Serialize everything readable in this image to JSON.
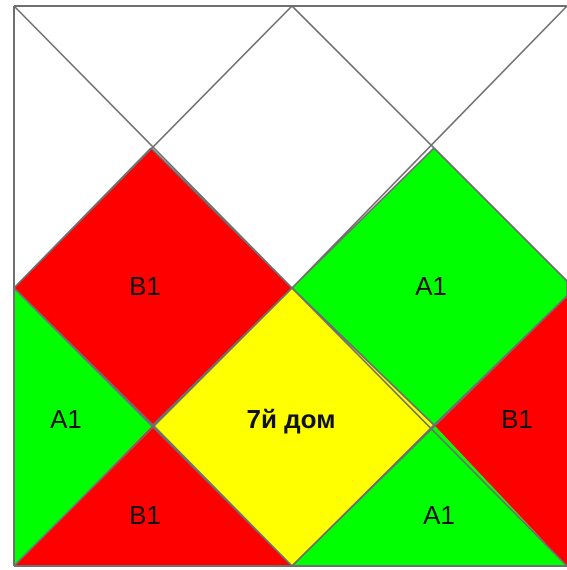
{
  "diagram": {
    "colors": {
      "red": "#ff0000",
      "green": "#00ff00",
      "yellow": "#ffff00",
      "white": "#ffffff",
      "line": "#6f6f6f"
    },
    "labels": {
      "top_left_red": "B1",
      "top_right_green": "A1",
      "middle_left_green": "A1",
      "center_yellow": "7й дом",
      "middle_right_red": "B1",
      "bottom_left_red": "B1",
      "bottom_right_green": "A1"
    }
  }
}
